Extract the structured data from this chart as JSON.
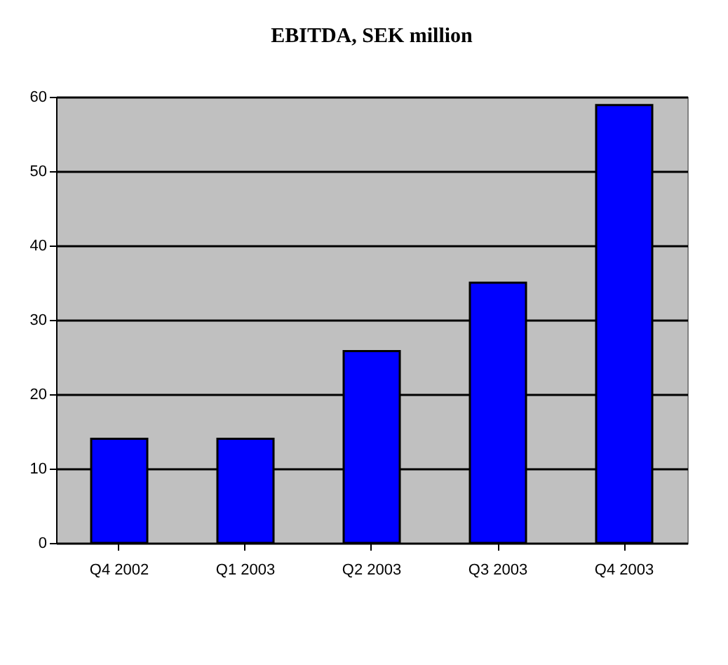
{
  "chart_data": {
    "type": "bar",
    "title": "EBITDA, SEK million",
    "categories": [
      "Q4 2002",
      "Q1 2003",
      "Q2 2003",
      "Q3 2003",
      "Q4 2003"
    ],
    "values": [
      14,
      14,
      25.8,
      35,
      58.9
    ],
    "color": "#0000ff",
    "ylim": [
      0,
      60
    ],
    "yticks": [
      0,
      10,
      20,
      30,
      40,
      50,
      60
    ],
    "grid": "y"
  }
}
